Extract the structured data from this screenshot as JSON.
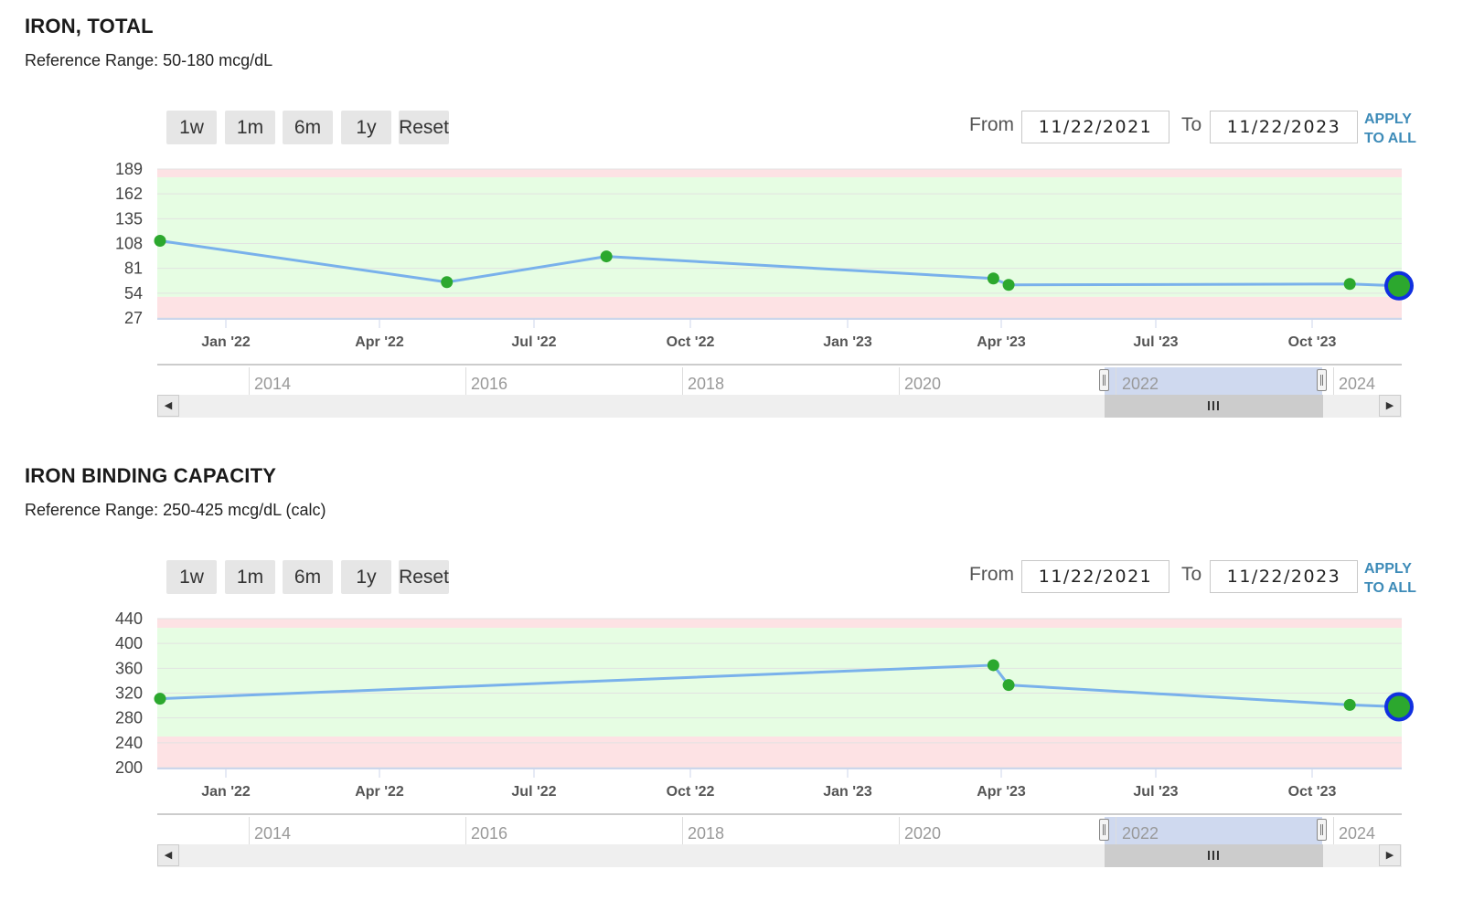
{
  "colors": {
    "in_range": "#e6fde3",
    "out_of_range": "#fde2e4",
    "line": "#79b1eb",
    "marker": "#2ca82e",
    "latest_marker_border": "#1030e0",
    "link": "#3d8bb8"
  },
  "panels": [
    {
      "title": "IRON, TOTAL",
      "reference_range": "Reference Range: 50-180 mcg/dL",
      "range_buttons": [
        "1w",
        "1m",
        "6m",
        "1y",
        "Reset"
      ],
      "from_label": "From",
      "from_value": "11/22/2021",
      "to_label": "To",
      "to_value": "11/22/2023",
      "apply_line1": "APPLY",
      "apply_line2": "TO ALL",
      "navigator_years": [
        "2014",
        "2016",
        "2018",
        "2020",
        "2022",
        "2024"
      ]
    },
    {
      "title": "IRON BINDING CAPACITY",
      "reference_range": "Reference Range: 250-425 mcg/dL (calc)",
      "range_buttons": [
        "1w",
        "1m",
        "6m",
        "1y",
        "Reset"
      ],
      "from_label": "From",
      "from_value": "11/22/2021",
      "to_label": "To",
      "to_value": "11/22/2023",
      "apply_line1": "APPLY",
      "apply_line2": "TO ALL",
      "navigator_years": [
        "2014",
        "2016",
        "2018",
        "2020",
        "2022",
        "2024"
      ]
    }
  ],
  "chart_data": [
    {
      "type": "line",
      "title": "IRON, TOTAL",
      "xlabel": "",
      "ylabel": "",
      "xlim": [
        "2021-11-22",
        "2023-11-22"
      ],
      "ylim": [
        27,
        189
      ],
      "y_ticks": [
        189,
        162,
        135,
        108,
        81,
        54,
        27
      ],
      "x_tick_labels": [
        "Jan '22",
        "Apr '22",
        "Jul '22",
        "Oct '22",
        "Jan '23",
        "Apr '23",
        "Jul '23",
        "Oct '23"
      ],
      "reference_band": [
        50,
        180
      ],
      "grid": true,
      "series": [
        {
          "x": [
            "2021-11-22",
            "2022-05-10",
            "2022-08-12",
            "2023-03-28",
            "2023-04-06",
            "2023-10-24",
            "2023-11-22"
          ],
          "y": [
            111,
            66,
            94,
            70,
            63,
            64,
            62
          ]
        }
      ]
    },
    {
      "type": "line",
      "title": "IRON BINDING CAPACITY",
      "xlabel": "",
      "ylabel": "",
      "xlim": [
        "2021-11-22",
        "2023-11-22"
      ],
      "ylim": [
        200,
        440
      ],
      "y_ticks": [
        440,
        400,
        360,
        320,
        280,
        240,
        200
      ],
      "x_tick_labels": [
        "Jan '22",
        "Apr '22",
        "Jul '22",
        "Oct '22",
        "Jan '23",
        "Apr '23",
        "Jul '23",
        "Oct '23"
      ],
      "reference_band": [
        250,
        425
      ],
      "grid": true,
      "series": [
        {
          "x": [
            "2021-11-22",
            "2023-03-28",
            "2023-04-06",
            "2023-10-24",
            "2023-11-22"
          ],
          "y": [
            311,
            365,
            333,
            301,
            298
          ]
        }
      ]
    }
  ]
}
